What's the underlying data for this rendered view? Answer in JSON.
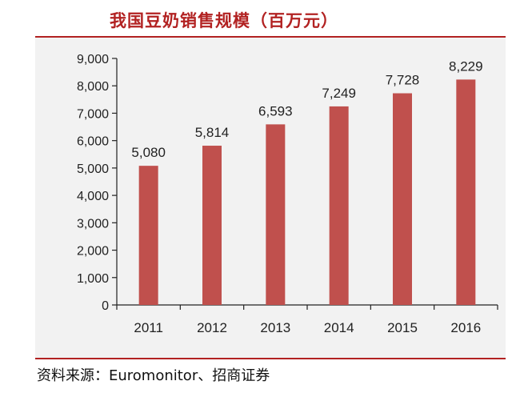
{
  "header": {
    "title": "我国豆奶销售规模（百万元）"
  },
  "footer": {
    "source": "资料来源：Euromonitor、招商证券"
  },
  "colors": {
    "bar": "#c0504d",
    "accent": "#b22222",
    "panel": "#f2f2f2",
    "axis": "#222222"
  },
  "chart_data": {
    "type": "bar",
    "title": "我国豆奶销售规模（百万元）",
    "categories": [
      "2011",
      "2012",
      "2013",
      "2014",
      "2015",
      "2016"
    ],
    "values": [
      5080,
      5814,
      6593,
      7249,
      7728,
      8229
    ],
    "value_labels": [
      "5,080",
      "5,814",
      "6,593",
      "7,249",
      "7,728",
      "8,229"
    ],
    "ylim": [
      0,
      9000
    ],
    "yticks": [
      0,
      1000,
      2000,
      3000,
      4000,
      5000,
      6000,
      7000,
      8000,
      9000
    ],
    "ytick_labels": [
      "0",
      "1,000",
      "2,000",
      "3,000",
      "4,000",
      "5,000",
      "6,000",
      "7,000",
      "8,000",
      "9,000"
    ],
    "xlabel": "",
    "ylabel": "",
    "grid": false,
    "legend": "none"
  }
}
